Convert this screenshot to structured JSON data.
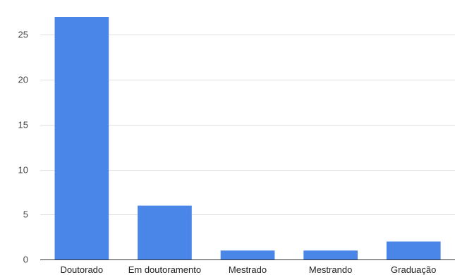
{
  "chart_data": {
    "type": "bar",
    "categories": [
      "Doutorado",
      "Em doutoramento",
      "Mestrado",
      "Mestrando",
      "Graduação"
    ],
    "values": [
      27,
      6,
      1,
      1,
      2
    ],
    "ylim": [
      0,
      28.1
    ],
    "yticks": [
      0,
      5,
      10,
      15,
      20,
      25
    ],
    "grid": true,
    "bar_color": "#4a86e8",
    "title": "",
    "xlabel": "",
    "ylabel": ""
  }
}
